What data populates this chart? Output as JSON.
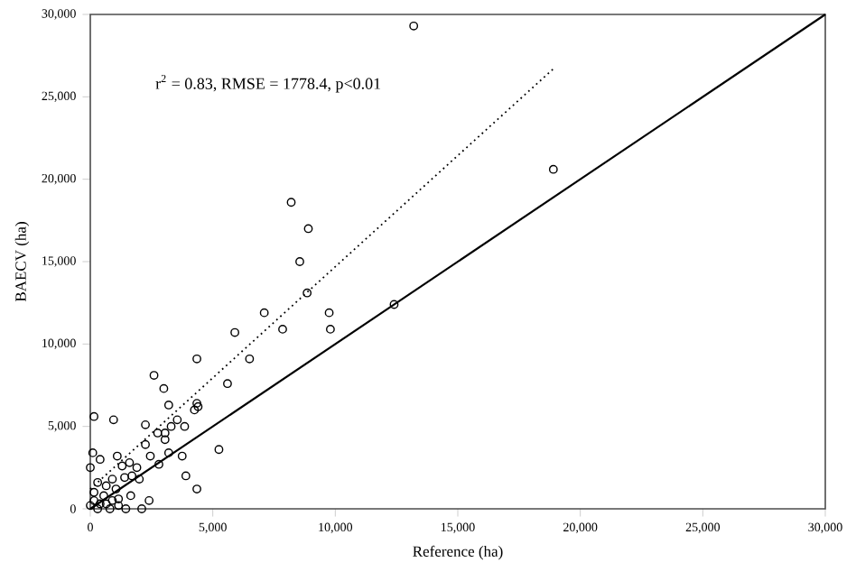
{
  "chart_data": {
    "type": "scatter",
    "xlabel": "Reference (ha)",
    "ylabel": "BAECV (ha)",
    "annotations": [
      "r$^{2}$ = 0.83, RMSE = 1778.4, p<0.01"
    ],
    "xlim": [
      0,
      30000
    ],
    "ylim": [
      0,
      30000
    ],
    "xticks": [
      0,
      {
        "value": 5000,
        "label": "5,000"
      },
      {
        "value": 10000,
        "label": "10,000"
      },
      {
        "value": 15000,
        "label": "15,000"
      },
      {
        "value": 20000,
        "label": "20,000"
      },
      {
        "value": 25000,
        "label": "25,000"
      },
      {
        "value": 30000,
        "label": "30,000"
      }
    ],
    "yticks": [
      0,
      {
        "value": 5000,
        "label": "5,000"
      },
      {
        "value": 10000,
        "label": "10,000"
      },
      {
        "value": 15000,
        "label": "15,000"
      },
      {
        "value": 20000,
        "label": "20,000"
      },
      {
        "value": 25000,
        "label": "25,000"
      },
      {
        "value": 30000,
        "label": "30,000"
      }
    ],
    "grid": false,
    "series": [
      {
        "color": "#000000",
        "marker": "circle",
        "x": [
          8550,
          8850,
          7100,
          5900,
          7850,
          9750,
          9800,
          12400,
          4350,
          6500,
          2600,
          3000,
          5600,
          3200,
          4350,
          4250,
          4400,
          150,
          950,
          3550,
          3850,
          3300,
          2250,
          2750,
          3050,
          3050,
          2250,
          5250,
          3200,
          3750,
          100,
          400,
          1100,
          2800,
          2450,
          1600,
          1300,
          0,
          3900,
          1900,
          1700,
          2000,
          1400,
          900,
          650,
          1050,
          300,
          150,
          550,
          1150,
          1650,
          2400,
          4350,
          0,
          300,
          650,
          1150,
          1450,
          2100,
          150,
          400,
          800,
          900,
          8200,
          8900,
          13200,
          18900
        ],
        "values": [
          15000,
          13100,
          11900,
          10700,
          10900,
          11900,
          10900,
          12400,
          9100,
          9100,
          8100,
          7300,
          7600,
          6300,
          6400,
          6000,
          6200,
          5600,
          5400,
          5400,
          5000,
          5000,
          5100,
          4600,
          4600,
          4200,
          3900,
          3600,
          3400,
          3200,
          3400,
          3000,
          3200,
          2700,
          3200,
          2800,
          2600,
          2500,
          2000,
          2500,
          2000,
          1800,
          1900,
          1800,
          1400,
          1200,
          1600,
          1000,
          800,
          600,
          800,
          500,
          1200,
          200,
          0,
          300,
          200,
          0,
          0,
          500,
          300,
          0,
          500,
          18600,
          17000,
          29300,
          20600
        ]
      },
      {
        "type": "line",
        "color": "#000000",
        "line_style": "solid",
        "marker": "none",
        "x": [
          0,
          30000
        ],
        "values": [
          0,
          30000
        ]
      },
      {
        "type": "line",
        "color": "#000000",
        "line_style": "dotted",
        "marker": "none",
        "x": [
          0,
          18900
        ],
        "values": [
          1200,
          26700
        ]
      }
    ]
  }
}
